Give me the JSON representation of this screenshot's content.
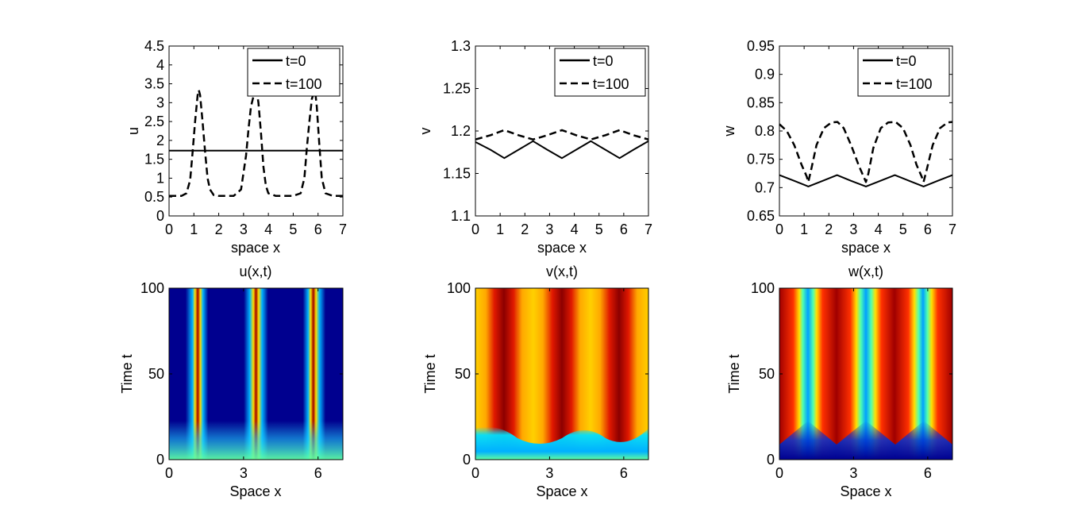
{
  "chart_data": [
    {
      "type": "line",
      "ylabel": "u",
      "xlabel": "space x",
      "xlim": [
        0,
        7
      ],
      "ylim": [
        0,
        4.5
      ],
      "xticks": [
        "0",
        "1",
        "2",
        "3",
        "4",
        "5",
        "6",
        "7"
      ],
      "yticks": [
        "0",
        "0.5",
        "1",
        "1.5",
        "2",
        "2.5",
        "3",
        "3.5",
        "4",
        "4.5"
      ],
      "legend": {
        "placement": "top-right"
      },
      "series": [
        {
          "name": "t=0",
          "style": "solid",
          "x": [
            0,
            7
          ],
          "y": [
            1.73,
            1.73
          ]
        },
        {
          "name": "t=100",
          "style": "dashed",
          "x": [
            0,
            0.5,
            0.7,
            0.85,
            0.95,
            1.05,
            1.15,
            1.2,
            1.25,
            1.35,
            1.45,
            1.55,
            1.65,
            1.8,
            2.0,
            2.4,
            2.6,
            2.9,
            3.1,
            3.2,
            3.3,
            3.45,
            3.55,
            3.6,
            3.7,
            3.8,
            3.9,
            4.0,
            4.3,
            4.6,
            5.0,
            5.3,
            5.45,
            5.55,
            5.65,
            5.75,
            5.85,
            5.9,
            5.95,
            6.05,
            6.15,
            6.3,
            6.6,
            7.0
          ],
          "y": [
            0.53,
            0.53,
            0.6,
            0.95,
            1.7,
            2.5,
            3.2,
            3.33,
            3.2,
            2.5,
            1.7,
            1.0,
            0.7,
            0.55,
            0.53,
            0.53,
            0.53,
            0.7,
            1.6,
            2.3,
            2.9,
            3.3,
            3.2,
            3.0,
            2.2,
            1.3,
            0.8,
            0.6,
            0.53,
            0.53,
            0.53,
            0.6,
            1.0,
            1.8,
            2.5,
            3.1,
            3.3,
            3.2,
            2.9,
            1.9,
            1.0,
            0.6,
            0.53,
            0.53
          ]
        }
      ]
    },
    {
      "type": "line",
      "ylabel": "v",
      "xlabel": "space x",
      "xlim": [
        0,
        7
      ],
      "ylim": [
        1.1,
        1.3
      ],
      "xticks": [
        "0",
        "1",
        "2",
        "3",
        "4",
        "5",
        "6",
        "7"
      ],
      "yticks": [
        "1.1",
        "1.15",
        "1.2",
        "1.25",
        "1.3"
      ],
      "legend": {
        "placement": "top-right"
      },
      "series": [
        {
          "name": "t=0",
          "style": "solid",
          "x": [
            0,
            0.6,
            1.17,
            1.75,
            2.33,
            2.9,
            3.5,
            4.08,
            4.67,
            5.25,
            5.83,
            6.4,
            7.0
          ],
          "y": [
            1.187,
            1.178,
            1.168,
            1.178,
            1.188,
            1.178,
            1.168,
            1.178,
            1.188,
            1.178,
            1.168,
            1.178,
            1.188
          ]
        },
        {
          "name": "t=100",
          "style": "dashed",
          "x": [
            0,
            0.6,
            1.17,
            1.75,
            2.33,
            2.9,
            3.5,
            4.08,
            4.67,
            5.25,
            5.83,
            6.4,
            7.0
          ],
          "y": [
            1.19,
            1.195,
            1.201,
            1.195,
            1.19,
            1.195,
            1.201,
            1.195,
            1.19,
            1.195,
            1.201,
            1.195,
            1.19
          ]
        }
      ]
    },
    {
      "type": "line",
      "ylabel": "w",
      "xlabel": "space x",
      "xlim": [
        0,
        7
      ],
      "ylim": [
        0.65,
        0.95
      ],
      "xticks": [
        "0",
        "1",
        "2",
        "3",
        "4",
        "5",
        "6",
        "7"
      ],
      "yticks": [
        "0.65",
        "0.7",
        "0.75",
        "0.8",
        "0.85",
        "0.9",
        "0.95"
      ],
      "legend": {
        "placement": "top-right"
      },
      "series": [
        {
          "name": "t=0",
          "style": "solid",
          "x": [
            0,
            0.6,
            1.17,
            1.75,
            2.33,
            2.9,
            3.5,
            4.08,
            4.67,
            5.25,
            5.83,
            6.4,
            7.0
          ],
          "y": [
            0.722,
            0.712,
            0.702,
            0.712,
            0.722,
            0.712,
            0.702,
            0.712,
            0.722,
            0.712,
            0.702,
            0.712,
            0.722
          ]
        },
        {
          "name": "t=100",
          "style": "dashed",
          "x": [
            0,
            0.3,
            0.6,
            0.9,
            1.1,
            1.17,
            1.3,
            1.5,
            1.8,
            2.1,
            2.35,
            2.6,
            2.9,
            3.2,
            3.4,
            3.5,
            3.6,
            3.8,
            4.1,
            4.4,
            4.7,
            5.0,
            5.3,
            5.55,
            5.75,
            5.83,
            5.95,
            6.2,
            6.5,
            6.8,
            7.0
          ],
          "y": [
            0.812,
            0.8,
            0.775,
            0.74,
            0.72,
            0.71,
            0.735,
            0.775,
            0.805,
            0.815,
            0.816,
            0.805,
            0.775,
            0.74,
            0.72,
            0.71,
            0.725,
            0.77,
            0.805,
            0.815,
            0.816,
            0.805,
            0.775,
            0.74,
            0.72,
            0.71,
            0.73,
            0.775,
            0.805,
            0.815,
            0.816
          ]
        }
      ]
    },
    {
      "type": "heatmap",
      "title": "u(x,t)",
      "xlabel": "Space x",
      "ylabel": "Time t",
      "xlim": [
        0,
        7
      ],
      "ylim": [
        0,
        100
      ],
      "xticks": [
        "0",
        "3",
        "6"
      ],
      "yticks": [
        "0",
        "50",
        "100"
      ],
      "peaks_x": [
        1.2,
        3.5,
        5.8
      ],
      "colormap": "jet"
    },
    {
      "type": "heatmap",
      "title": "v(x,t)",
      "xlabel": "Space x",
      "ylabel": "Time t",
      "xlim": [
        0,
        7
      ],
      "ylim": [
        0,
        100
      ],
      "xticks": [
        "0",
        "3",
        "6"
      ],
      "yticks": [
        "0",
        "50",
        "100"
      ],
      "peaks_x": [
        1.2,
        3.5,
        5.8
      ],
      "colormap": "jet"
    },
    {
      "type": "heatmap",
      "title": "w(x,t)",
      "xlabel": "Space x",
      "ylabel": "Time t",
      "xlim": [
        0,
        7
      ],
      "ylim": [
        0,
        100
      ],
      "xticks": [
        "0",
        "3",
        "6"
      ],
      "yticks": [
        "0",
        "50",
        "100"
      ],
      "troughs_x": [
        1.2,
        3.5,
        5.8
      ],
      "colormap": "jet"
    }
  ]
}
